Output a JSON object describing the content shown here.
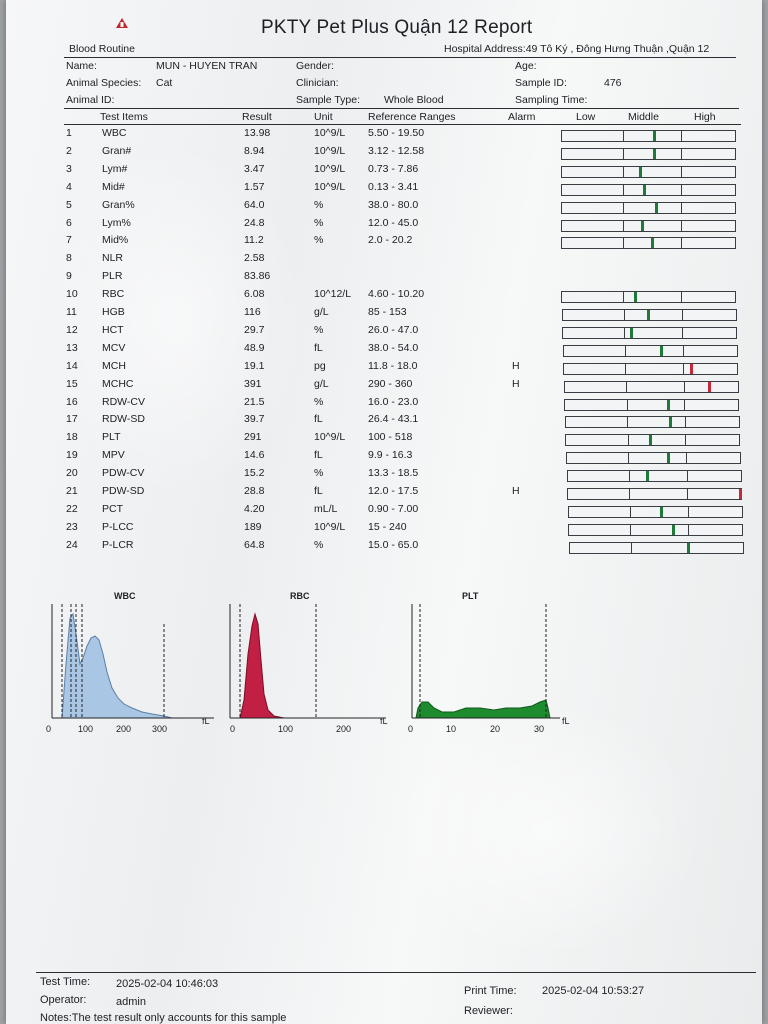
{
  "report": {
    "title": "PKTY Pet Plus Quận 12 Report",
    "section": "Blood Routine",
    "hospital_address": "Hospital Address:49 Tô Ký , Đông Hưng Thuận ,Quận 12"
  },
  "patient": {
    "name_label": "Name:",
    "name_value": "MUN - HUYEN TRAN",
    "gender_label": "Gender:",
    "age_label": "Age:",
    "species_label": "Animal Species:",
    "species_value": "Cat",
    "clinician_label": "Clinician:",
    "sample_id_label": "Sample ID:",
    "sample_id_value": "476",
    "animal_id_label": "Animal ID:",
    "sample_type_label": "Sample Type:",
    "sample_type_value": "Whole Blood",
    "sampling_time_label": "Sampling Time:"
  },
  "columns": {
    "test_items": "Test Items",
    "result": "Result",
    "unit": "Unit",
    "ranges": "Reference Ranges",
    "alarm": "Alarm",
    "low": "Low",
    "middle": "Middle",
    "high": "High"
  },
  "rows": [
    {
      "no": "1",
      "item": "WBC",
      "result": "13.98",
      "unit": "10^9/L",
      "range": "5.50 - 19.50",
      "alarm": "",
      "level": 0.52,
      "color": "#1f7a3a"
    },
    {
      "no": "2",
      "item": "Gran#",
      "result": "8.94",
      "unit": "10^9/L",
      "range": "3.12 - 12.58",
      "alarm": "",
      "level": 0.52,
      "color": "#1f7a3a"
    },
    {
      "no": "3",
      "item": "Lym#",
      "result": "3.47",
      "unit": "10^9/L",
      "range": "0.73 - 7.86",
      "alarm": "",
      "level": 0.44,
      "color": "#1f7a3a"
    },
    {
      "no": "4",
      "item": "Mid#",
      "result": "1.57",
      "unit": "10^9/L",
      "range": "0.13 - 3.41",
      "alarm": "",
      "level": 0.46,
      "color": "#1f7a3a"
    },
    {
      "no": "5",
      "item": "Gran%",
      "result": "64.0",
      "unit": "%",
      "range": "38.0 - 80.0",
      "alarm": "",
      "level": 0.53,
      "color": "#1f7a3a"
    },
    {
      "no": "6",
      "item": "Lym%",
      "result": "24.8",
      "unit": "%",
      "range": "12.0 - 45.0",
      "alarm": "",
      "level": 0.45,
      "color": "#1f7a3a"
    },
    {
      "no": "7",
      "item": "Mid%",
      "result": "11.2",
      "unit": "%",
      "range": "2.0 - 20.2",
      "alarm": "",
      "level": 0.51,
      "color": "#1f7a3a"
    },
    {
      "no": "8",
      "item": "NLR",
      "result": "2.58",
      "unit": "",
      "range": "",
      "alarm": ""
    },
    {
      "no": "9",
      "item": "PLR",
      "result": "83.86",
      "unit": "",
      "range": "",
      "alarm": ""
    },
    {
      "no": "10",
      "item": "RBC",
      "result": "6.08",
      "unit": "10^12/L",
      "range": "4.60 - 10.20",
      "alarm": "",
      "level": 0.41,
      "color": "#1f7a3a"
    },
    {
      "no": "11",
      "item": "HGB",
      "result": "116",
      "unit": "g/L",
      "range": "85 - 153",
      "alarm": "",
      "level": 0.48,
      "color": "#1f7a3a"
    },
    {
      "no": "12",
      "item": "HCT",
      "result": "29.7",
      "unit": "%",
      "range": "26.0 - 47.0",
      "alarm": "",
      "level": 0.38,
      "color": "#1f7a3a"
    },
    {
      "no": "13",
      "item": "MCV",
      "result": "48.9",
      "unit": "fL",
      "range": "38.0 - 54.0",
      "alarm": "",
      "level": 0.55,
      "color": "#1f7a3a"
    },
    {
      "no": "14",
      "item": "MCH",
      "result": "19.1",
      "unit": "pg",
      "range": "11.8 - 18.0",
      "alarm": "H",
      "level": 0.72,
      "color": "#c8283a"
    },
    {
      "no": "15",
      "item": "MCHC",
      "result": "391",
      "unit": "g/L",
      "range": "290 - 360",
      "alarm": "H",
      "level": 0.82,
      "color": "#c8283a"
    },
    {
      "no": "16",
      "item": "RDW-CV",
      "result": "21.5",
      "unit": "%",
      "range": "16.0 - 23.0",
      "alarm": "",
      "level": 0.58,
      "color": "#1f7a3a"
    },
    {
      "no": "17",
      "item": "RDW-SD",
      "result": "39.7",
      "unit": "fL",
      "range": "26.4 - 43.1",
      "alarm": "",
      "level": 0.59,
      "color": "#1f7a3a"
    },
    {
      "no": "18",
      "item": "PLT",
      "result": "291",
      "unit": "10^9/L",
      "range": "100 - 518",
      "alarm": "",
      "level": 0.47,
      "color": "#1f7a3a"
    },
    {
      "no": "19",
      "item": "MPV",
      "result": "14.6",
      "unit": "fL",
      "range": "9.9 - 16.3",
      "alarm": "",
      "level": 0.57,
      "color": "#1f7a3a"
    },
    {
      "no": "20",
      "item": "PDW-CV",
      "result": "15.2",
      "unit": "%",
      "range": "13.3 - 18.5",
      "alarm": "",
      "level": 0.45,
      "color": "#1f7a3a"
    },
    {
      "no": "21",
      "item": "PDW-SD",
      "result": "28.8",
      "unit": "fL",
      "range": "12.0 - 17.5",
      "alarm": "H",
      "level": 0.98,
      "color": "#c8283a"
    },
    {
      "no": "22",
      "item": "PCT",
      "result": "4.20",
      "unit": "mL/L",
      "range": "0.90 - 7.00",
      "alarm": "",
      "level": 0.52,
      "color": "#1f7a3a"
    },
    {
      "no": "23",
      "item": "P-LCC",
      "result": "189",
      "unit": "10^9/L",
      "range": "15 - 240",
      "alarm": "",
      "level": 0.59,
      "color": "#1f7a3a"
    },
    {
      "no": "24",
      "item": "P-LCR",
      "result": "64.8",
      "unit": "%",
      "range": "15.0 - 65.0",
      "alarm": "",
      "level": 0.67,
      "color": "#1f7a3a"
    }
  ],
  "histograms": {
    "wbc": {
      "title": "WBC",
      "unit": "fL",
      "ticks": [
        "0",
        "100",
        "200",
        "300"
      ],
      "color": "#a9c6e4"
    },
    "rbc": {
      "title": "RBC",
      "unit": "fL",
      "ticks": [
        "0",
        "100",
        "200"
      ],
      "color": "#c21f45"
    },
    "plt": {
      "title": "PLT",
      "unit": "fL",
      "ticks": [
        "0",
        "10",
        "20",
        "30"
      ],
      "color": "#1e8c2e"
    }
  },
  "footer": {
    "test_time_label": "Test Time:",
    "test_time_value": "2025-02-04 10:46:03",
    "operator_label": "Operator:",
    "operator_value": "admin",
    "notes": "Notes:The test result only accounts for this sample",
    "print_time_label": "Print Time:",
    "print_time_value": "2025-02-04 10:53:27",
    "reviewer_label": "Reviewer:"
  }
}
